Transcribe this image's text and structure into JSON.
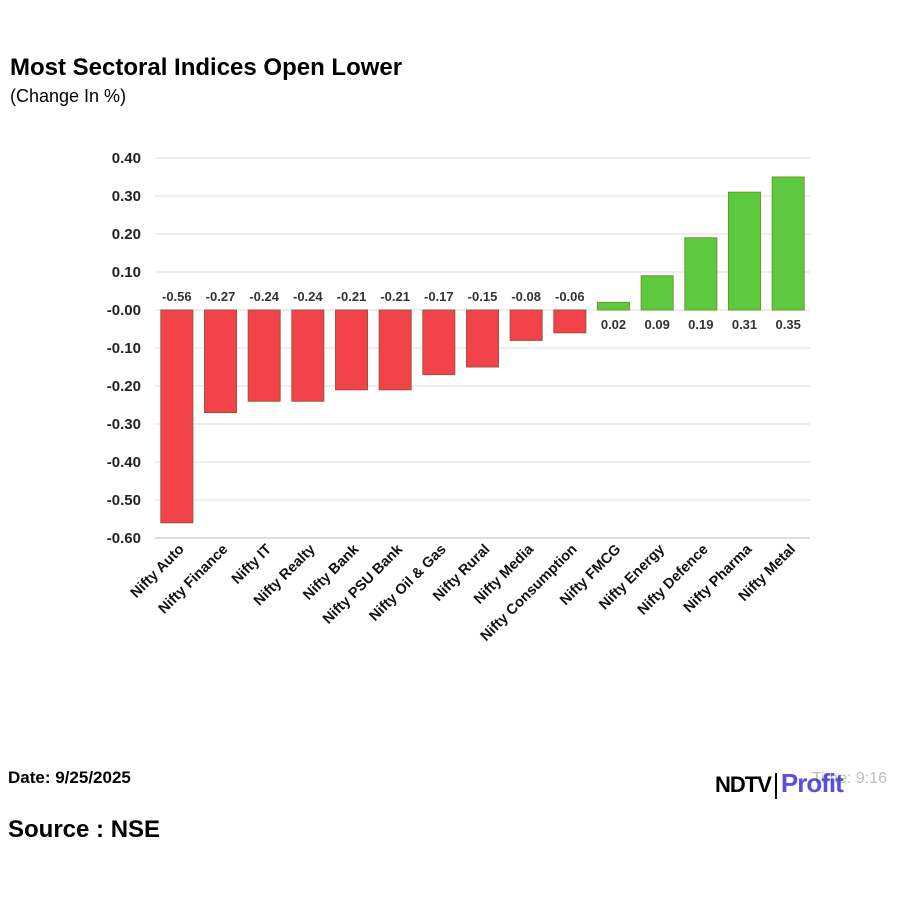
{
  "chart_data": {
    "type": "bar",
    "title": "Most Sectoral Indices Open Lower",
    "subtitle": "(Change In %)",
    "categories": [
      "Nifty Auto",
      "Nifty Finance",
      "Nifty IT",
      "Nifty Realty",
      "Nifty Bank",
      "Nifty PSU Bank",
      "Nifty Oil & Gas",
      "Nifty Rural",
      "Nifty Media",
      "Nifty Consumption",
      "Nifty FMCG",
      "Nifty Energy",
      "Nifty Defence",
      "Nifty Pharma",
      "Nifty Metal"
    ],
    "values": [
      -0.56,
      -0.27,
      -0.24,
      -0.24,
      -0.21,
      -0.21,
      -0.17,
      -0.15,
      -0.08,
      -0.06,
      0.02,
      0.09,
      0.19,
      0.31,
      0.35
    ],
    "ylim": [
      -0.6,
      0.4
    ],
    "yticks": [
      "0.40",
      "0.30",
      "0.20",
      "0.10",
      "-0.00",
      "-0.10",
      "-0.20",
      "-0.30",
      "-0.40",
      "-0.50",
      "-0.60"
    ],
    "grid": true,
    "colors": {
      "negative": "#f2434b",
      "positive": "#5cc93e"
    }
  },
  "footer": {
    "date": "Date: 9/25/2025",
    "source": "Source : NSE",
    "time": "Time: 9:16",
    "logo": "NDTV Profit"
  }
}
